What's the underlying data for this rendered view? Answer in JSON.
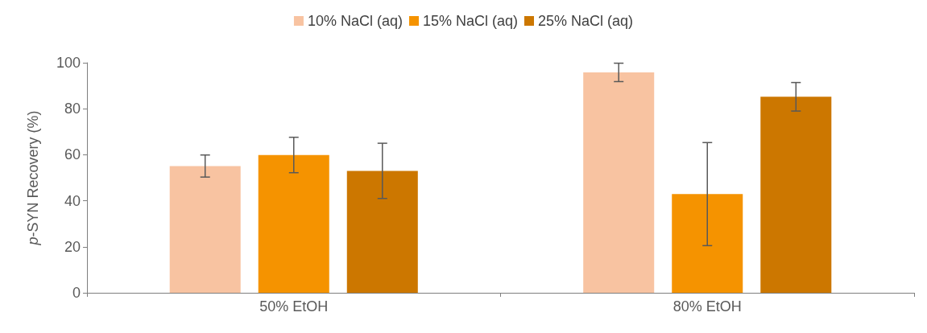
{
  "chart_data": {
    "type": "bar",
    "ylabel": "p-SYN Recovery (%)",
    "categories": [
      "50% EtOH",
      "80% EtOH"
    ],
    "ylim": [
      0,
      100
    ],
    "yticks": [
      0,
      20,
      40,
      60,
      80,
      100
    ],
    "grid": false,
    "legend": "top",
    "series": [
      {
        "name": "10% NaCl (aq)",
        "color": "#f8c3a1",
        "values": [
          55.1,
          95.8
        ],
        "errors": [
          4.8,
          4
        ]
      },
      {
        "name": "15% NaCl (aq)",
        "color": "#f59300",
        "values": [
          59.9,
          42.9
        ],
        "errors": [
          7.7,
          22.4
        ]
      },
      {
        "name": "25% NaCl (aq)",
        "color": "#cc7700",
        "values": [
          53,
          85.2
        ],
        "errors": [
          12,
          6.2
        ]
      }
    ]
  }
}
